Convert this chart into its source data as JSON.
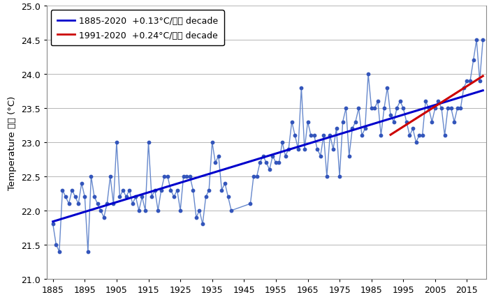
{
  "years": [
    1885,
    1886,
    1887,
    1888,
    1889,
    1890,
    1891,
    1892,
    1893,
    1894,
    1895,
    1896,
    1897,
    1898,
    1899,
    1900,
    1901,
    1902,
    1903,
    1904,
    1905,
    1906,
    1907,
    1908,
    1909,
    1910,
    1911,
    1912,
    1913,
    1914,
    1915,
    1916,
    1917,
    1918,
    1919,
    1920,
    1921,
    1922,
    1923,
    1924,
    1925,
    1926,
    1927,
    1928,
    1929,
    1930,
    1931,
    1932,
    1933,
    1934,
    1935,
    1936,
    1937,
    1938,
    1939,
    1940,
    1941,
    1947,
    1948,
    1949,
    1950,
    1951,
    1952,
    1953,
    1954,
    1955,
    1956,
    1957,
    1958,
    1959,
    1960,
    1961,
    1962,
    1963,
    1964,
    1965,
    1966,
    1967,
    1968,
    1969,
    1970,
    1971,
    1972,
    1973,
    1974,
    1975,
    1976,
    1977,
    1978,
    1979,
    1980,
    1981,
    1982,
    1983,
    1984,
    1985,
    1986,
    1987,
    1988,
    1989,
    1990,
    1991,
    1992,
    1993,
    1994,
    1995,
    1996,
    1997,
    1998,
    1999,
    2000,
    2001,
    2002,
    2003,
    2004,
    2005,
    2006,
    2007,
    2008,
    2009,
    2010,
    2011,
    2012,
    2013,
    2014,
    2015,
    2016,
    2017,
    2018,
    2019,
    2020
  ],
  "temps": [
    21.8,
    21.5,
    21.4,
    22.3,
    22.2,
    22.1,
    22.3,
    22.2,
    22.1,
    22.4,
    22.2,
    21.4,
    22.5,
    22.2,
    22.1,
    22.0,
    21.9,
    22.1,
    22.5,
    22.1,
    23.0,
    22.2,
    22.3,
    22.2,
    22.3,
    22.1,
    22.2,
    22.0,
    22.2,
    22.0,
    23.0,
    22.2,
    22.3,
    22.0,
    22.3,
    22.5,
    22.5,
    22.3,
    22.2,
    22.3,
    22.0,
    22.5,
    22.5,
    22.5,
    22.3,
    21.9,
    22.0,
    21.8,
    22.2,
    22.3,
    23.0,
    22.7,
    22.8,
    22.3,
    22.4,
    22.2,
    22.0,
    22.1,
    22.5,
    22.5,
    22.7,
    22.8,
    22.7,
    22.6,
    22.8,
    22.7,
    22.7,
    23.0,
    22.8,
    22.9,
    23.3,
    23.1,
    22.9,
    23.8,
    22.9,
    23.3,
    23.1,
    23.1,
    22.9,
    22.8,
    23.1,
    22.5,
    23.1,
    22.9,
    23.2,
    22.5,
    23.3,
    23.5,
    22.8,
    23.2,
    23.3,
    23.5,
    23.1,
    23.2,
    24.0,
    23.5,
    23.5,
    23.6,
    23.1,
    23.5,
    23.8,
    23.4,
    23.3,
    23.5,
    23.6,
    23.5,
    23.3,
    23.1,
    23.2,
    23.0,
    23.1,
    23.1,
    23.6,
    23.5,
    23.3,
    23.5,
    23.6,
    23.5,
    23.1,
    23.5,
    23.5,
    23.3,
    23.5,
    23.5,
    23.8,
    23.9,
    23.9,
    24.2,
    24.5,
    23.9,
    24.5
  ],
  "trend1_color": "#0000cc",
  "trend2_color": "#cc0000",
  "data_line_color": "#6688cc",
  "data_marker_color": "#3355bb",
  "legend1": "1885-2020  +0.13°C/十年 decade",
  "legend2": "1991-2020  +0.24°C/十年 decade",
  "ylabel": "Temperature 氣温 (°C)",
  "xlim": [
    1883,
    2021
  ],
  "ylim": [
    21.0,
    25.0
  ],
  "yticks": [
    21.0,
    21.5,
    22.0,
    22.5,
    23.0,
    23.5,
    24.0,
    24.5,
    25.0
  ],
  "xticks": [
    1885,
    1895,
    1905,
    1915,
    1925,
    1935,
    1945,
    1955,
    1965,
    1975,
    1985,
    1995,
    2005,
    2015
  ],
  "background_color": "#ffffff",
  "grid_color": "#aaaaaa"
}
